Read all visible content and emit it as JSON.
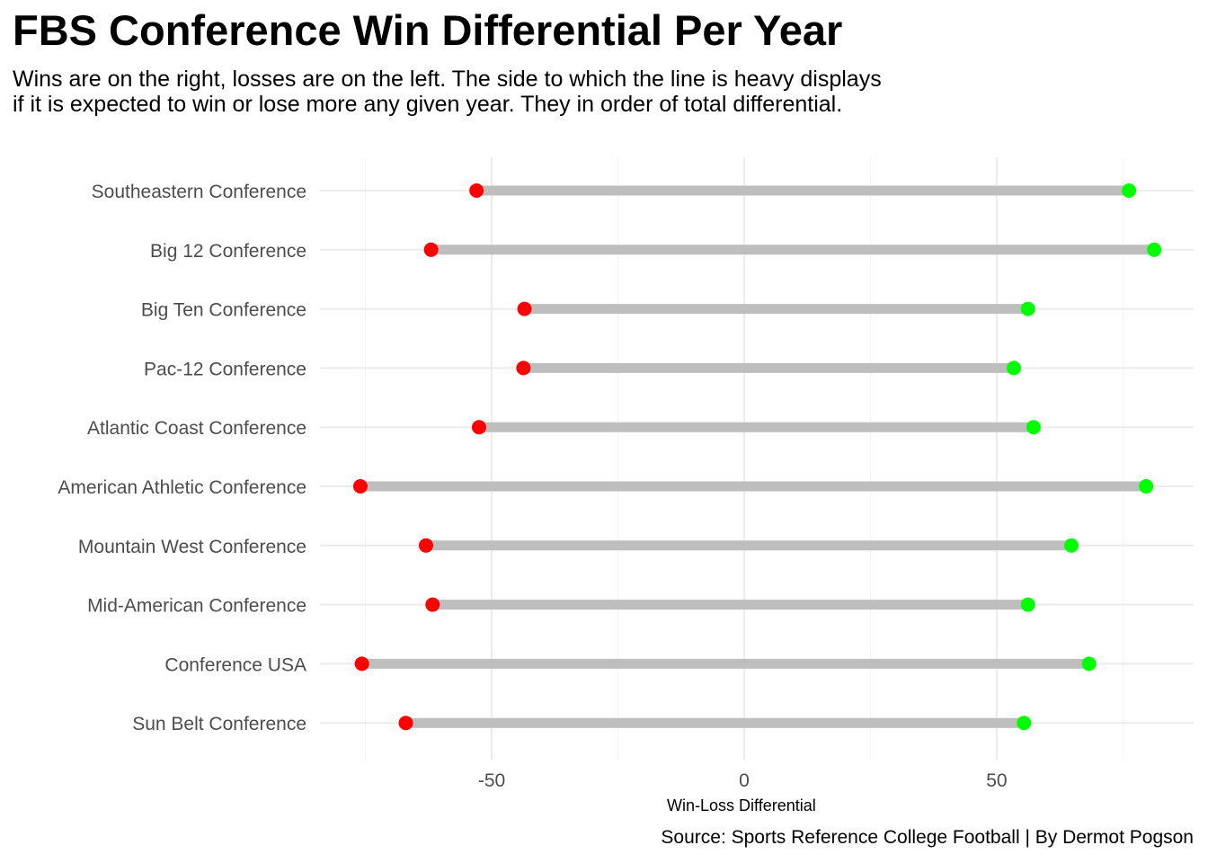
{
  "chart_data": {
    "type": "dumbbell",
    "title": "FBS Conference Win Differential Per Year",
    "subtitle": "Wins are on the right, losses are on the left. The side to which the line is heavy displays if it is expected to win or lose more any given year. They in order of total differential.",
    "caption": "Source: Sports Reference College Football | By Dermot Pogson",
    "xlabel": "Win-Loss Differential",
    "ylabel": "",
    "xlim": [
      -84,
      89
    ],
    "x_ticks": [
      -50,
      0,
      50
    ],
    "x_tick_labels": [
      "-50",
      "0",
      "50"
    ],
    "grid": true,
    "categories": [
      "Southeastern Conference",
      "Big 12 Conference",
      "Big Ten Conference",
      "Pac-12 Conference",
      "Atlantic Coast Conference",
      "American Athletic Conference",
      "Mountain West Conference",
      "Mid-American Conference",
      "Conference USA",
      "Sun Belt Conference"
    ],
    "series": [
      {
        "color": "#ff0000",
        "values": [
          -53,
          -62,
          -43.5,
          -43.7,
          -52.5,
          -76,
          -63,
          -61.7,
          -75.7,
          -67
        ]
      },
      {
        "color": "#00ff00",
        "values": [
          76.2,
          81.2,
          56.2,
          53.4,
          57.3,
          79.6,
          64.8,
          56.2,
          68.3,
          55.4
        ]
      }
    ],
    "segment_color": "#bebebe"
  }
}
